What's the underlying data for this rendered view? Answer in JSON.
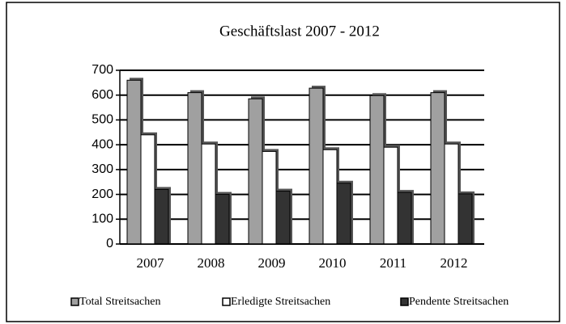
{
  "chart_data": {
    "type": "bar",
    "title": "Geschäftslast 2007 - 2012",
    "categories": [
      "2007",
      "2008",
      "2009",
      "2010",
      "2011",
      "2012"
    ],
    "series": [
      {
        "name": "Total Streitsachen",
        "color": "#a0a0a0",
        "values": [
          660,
          610,
          585,
          628,
          598,
          610
        ]
      },
      {
        "name": "Erledigte Streitsachen",
        "color": "#ffffff",
        "values": [
          440,
          403,
          373,
          380,
          390,
          403
        ]
      },
      {
        "name": "Pendente Streitsachen",
        "color": "#333333",
        "values": [
          220,
          200,
          213,
          245,
          208,
          202
        ]
      }
    ],
    "ylim": [
      0,
      700
    ],
    "yticks": [
      0,
      100,
      200,
      300,
      400,
      500,
      600,
      700
    ],
    "grid": true,
    "legend": "bottom"
  }
}
